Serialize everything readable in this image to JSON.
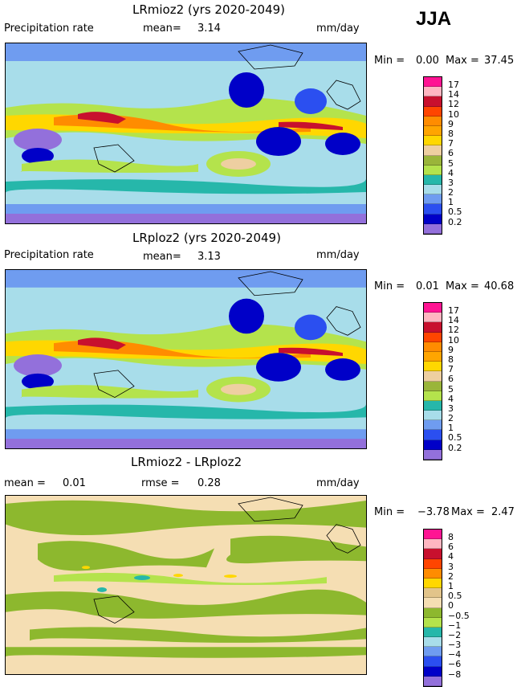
{
  "season": "JJA",
  "panels": [
    {
      "title": "LRmioz2 (yrs 2020-2049)",
      "left_label": "Precipitation rate",
      "mid_label": "mean=",
      "mid_value": "3.14",
      "units": "mm/day",
      "min_label": "Min =",
      "min_value": "0.00",
      "max_label": "Max =",
      "max_value": "37.45",
      "colorbar_ticks": [
        "17",
        "14",
        "12",
        "10",
        "9",
        "8",
        "7",
        "6",
        "5",
        "4",
        "3",
        "2",
        "1",
        "0.5",
        "0.2"
      ]
    },
    {
      "title": "LRploz2 (yrs 2020-2049)",
      "left_label": "Precipitation rate",
      "mid_label": "mean=",
      "mid_value": "3.13",
      "units": "mm/day",
      "min_label": "Min =",
      "min_value": "0.01",
      "max_label": "Max =",
      "max_value": "40.68",
      "colorbar_ticks": [
        "17",
        "14",
        "12",
        "10",
        "9",
        "8",
        "7",
        "6",
        "5",
        "4",
        "3",
        "2",
        "1",
        "0.5",
        "0.2"
      ]
    },
    {
      "title": "LRmioz2 - LRploz2",
      "left_label": "mean =",
      "left_value": "0.01",
      "mid_label": "rmse =",
      "mid_value": "0.28",
      "units": "mm/day",
      "min_label": "Min =",
      "min_value": "−3.78",
      "max_label": "Max =",
      "max_value": "2.47",
      "colorbar_ticks": [
        "8",
        "6",
        "4",
        "3",
        "2",
        "1",
        "0.5",
        "0",
        "−0.5",
        "−1",
        "−2",
        "−3",
        "−4",
        "−6",
        "−8"
      ]
    }
  ],
  "colors": {
    "precip_scale": [
      "#ff1493",
      "#ffb6c1",
      "#c8102e",
      "#ff4500",
      "#ff8c00",
      "#ffa500",
      "#ffd700",
      "#eecfa1",
      "#9ab53a",
      "#b4e34c",
      "#26b7aa",
      "#a8ddea",
      "#6f9cf0",
      "#2b4ff0",
      "#0000c8",
      "#9370db"
    ],
    "diff_scale": [
      "#ff1493",
      "#ffb6c1",
      "#c8102e",
      "#ff4500",
      "#ff8c00",
      "#ffa500",
      "#ffd700",
      "#e2c48a",
      "#f5deb3",
      "#8db82e",
      "#b4e34c",
      "#26b7aa",
      "#a8ddea",
      "#6f9cf0",
      "#2b4ff0",
      "#0000c8",
      "#9370db"
    ]
  }
}
